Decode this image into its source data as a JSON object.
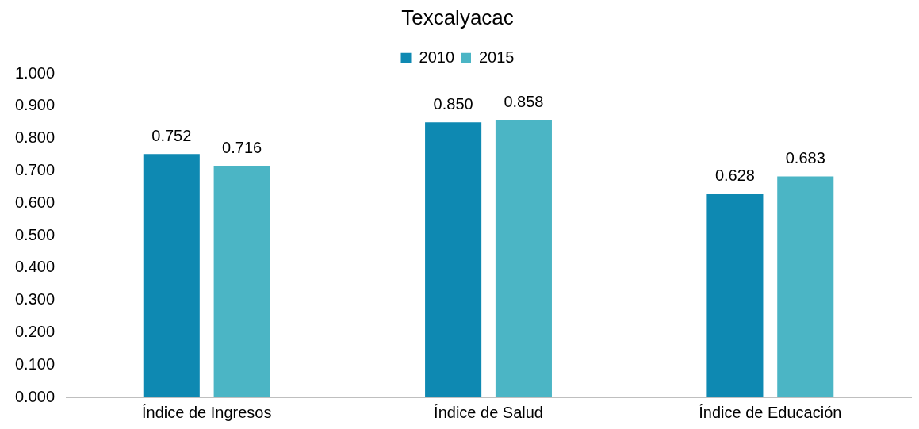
{
  "chart_data": {
    "type": "bar",
    "title": "Texcalyacac",
    "categories": [
      "Índice de Ingresos",
      "Índice de Salud",
      "Índice de Educación"
    ],
    "series": [
      {
        "name": "2010",
        "color": "#0e89b2",
        "values": [
          0.752,
          0.85,
          0.628
        ],
        "value_labels": [
          "0.752",
          "0.850",
          "0.628"
        ]
      },
      {
        "name": "2015",
        "color": "#4bb5c5",
        "values": [
          0.716,
          0.858,
          0.683
        ],
        "value_labels": [
          "0.716",
          "0.858",
          "0.683"
        ]
      }
    ],
    "ylim": [
      0,
      1
    ],
    "yticks": [
      {
        "value": 0,
        "label": "0.000"
      },
      {
        "value": 0.1,
        "label": "0.100"
      },
      {
        "value": 0.2,
        "label": "0.200"
      },
      {
        "value": 0.3,
        "label": "0.300"
      },
      {
        "value": 0.4,
        "label": "0.400"
      },
      {
        "value": 0.5,
        "label": "0.500"
      },
      {
        "value": 0.6,
        "label": "0.600"
      },
      {
        "value": 0.7,
        "label": "0.700"
      },
      {
        "value": 0.8,
        "label": "0.800"
      },
      {
        "value": 0.9,
        "label": "0.900"
      },
      {
        "value": 1,
        "label": "1.000"
      }
    ],
    "grid": false,
    "legend": "top"
  }
}
